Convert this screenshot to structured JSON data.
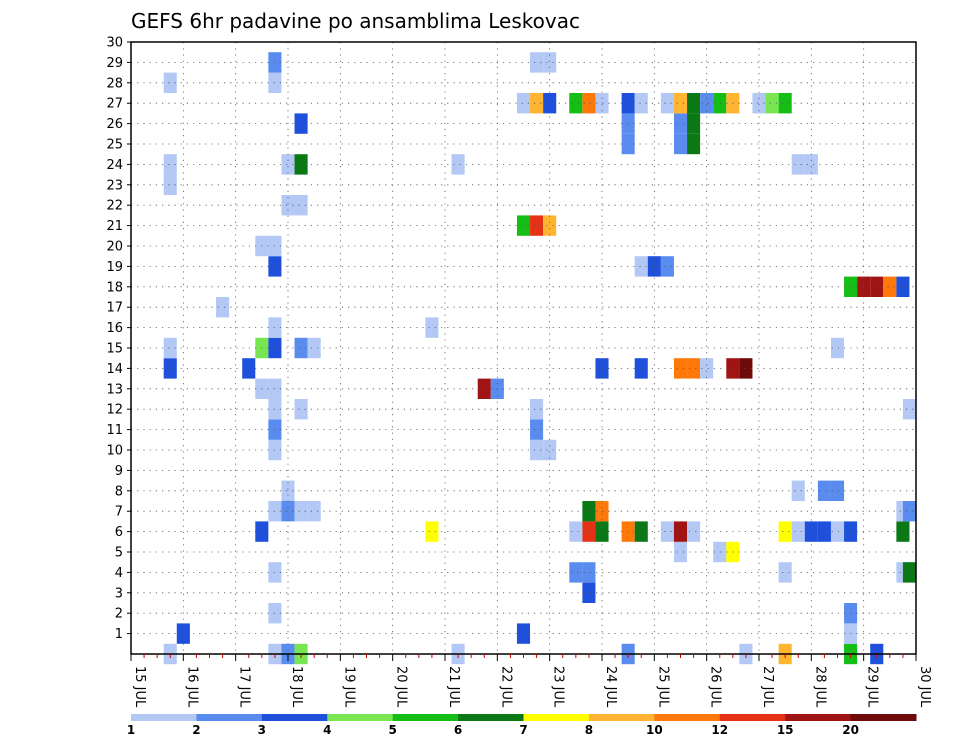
{
  "chart_data": {
    "type": "heatmap",
    "title": "GEFS 6hr padavine po ansamblima Leskovac",
    "x_ticks": [
      "15 JUL",
      "16 JUL",
      "17 JUL",
      "18 JUL",
      "19 JUL",
      "20 JUL",
      "21 JUL",
      "22 JUL",
      "23 JUL",
      "24 JUL",
      "25 JUL",
      "26 JUL",
      "27 JUL",
      "28 JUL",
      "29 JUL",
      "30 JUL"
    ],
    "y_ticks": [
      "1",
      "2",
      "3",
      "4",
      "5",
      "6",
      "7",
      "8",
      "9",
      "10",
      "11",
      "12",
      "13",
      "14",
      "15",
      "16",
      "17",
      "18",
      "19",
      "20",
      "21",
      "22",
      "23",
      "24",
      "25",
      "26",
      "27",
      "28",
      "29",
      "30"
    ],
    "xlim_days": [
      15,
      30
    ],
    "ylim_members": [
      0,
      30
    ],
    "time_step_hours": 6,
    "grid": "dotted",
    "colorbar": {
      "labels": [
        "1",
        "2",
        "3",
        "4",
        "5",
        "6",
        "7",
        "8",
        "10",
        "12",
        "15",
        "20"
      ],
      "colors": [
        "#b4c8f5",
        "#5a8cf0",
        "#1e50dc",
        "#78e650",
        "#14be14",
        "#0a7814",
        "#ffff00",
        "#ffb432",
        "#ff780a",
        "#e63214",
        "#a01414",
        "#6e0a0a"
      ]
    },
    "cells": [
      [
        15.75,
        0,
        1
      ],
      [
        16.0,
        1,
        3
      ],
      [
        17.25,
        14,
        3
      ],
      [
        15.75,
        14,
        3
      ],
      [
        15.75,
        15,
        1
      ],
      [
        15.75,
        23,
        1
      ],
      [
        15.75,
        24,
        1
      ],
      [
        15.75,
        28,
        1
      ],
      [
        16.75,
        17,
        1
      ],
      [
        17.5,
        6,
        3
      ],
      [
        17.5,
        15,
        4
      ],
      [
        17.5,
        20,
        1
      ],
      [
        17.5,
        13,
        1
      ],
      [
        17.75,
        0,
        1
      ],
      [
        17.75,
        2,
        1
      ],
      [
        17.75,
        4,
        1
      ],
      [
        17.75,
        7,
        1
      ],
      [
        17.75,
        10,
        1
      ],
      [
        17.75,
        11,
        2
      ],
      [
        17.75,
        12,
        1
      ],
      [
        17.75,
        13,
        1
      ],
      [
        17.75,
        15,
        3
      ],
      [
        17.75,
        16,
        1
      ],
      [
        17.75,
        19,
        3
      ],
      [
        17.75,
        20,
        1
      ],
      [
        17.75,
        28,
        1
      ],
      [
        17.75,
        29,
        2
      ],
      [
        18.0,
        0,
        2
      ],
      [
        18.0,
        7,
        2
      ],
      [
        18.0,
        8,
        1
      ],
      [
        18.0,
        24,
        1
      ],
      [
        18.0,
        22,
        1
      ],
      [
        18.25,
        0,
        4
      ],
      [
        18.25,
        7,
        1
      ],
      [
        18.25,
        12,
        1
      ],
      [
        18.25,
        15,
        2
      ],
      [
        18.25,
        22,
        1
      ],
      [
        18.25,
        24,
        6
      ],
      [
        18.25,
        26,
        3
      ],
      [
        18.5,
        7,
        1
      ],
      [
        18.5,
        15,
        1
      ],
      [
        20.75,
        6,
        7
      ],
      [
        20.75,
        16,
        1
      ],
      [
        21.25,
        24,
        1
      ],
      [
        21.25,
        0,
        1
      ],
      [
        21.75,
        13,
        11
      ],
      [
        22.0,
        13,
        2
      ],
      [
        22.5,
        1,
        3
      ],
      [
        22.5,
        21,
        5
      ],
      [
        22.5,
        27,
        1
      ],
      [
        22.75,
        10,
        1
      ],
      [
        22.75,
        11,
        2
      ],
      [
        22.75,
        12,
        1
      ],
      [
        22.75,
        21,
        10
      ],
      [
        22.75,
        27,
        8
      ],
      [
        22.75,
        29,
        1
      ],
      [
        23.0,
        10,
        1
      ],
      [
        23.0,
        21,
        8
      ],
      [
        23.0,
        27,
        3
      ],
      [
        23.0,
        29,
        1
      ],
      [
        23.5,
        4,
        2
      ],
      [
        23.5,
        6,
        1
      ],
      [
        23.5,
        27,
        5
      ],
      [
        23.75,
        3,
        3
      ],
      [
        23.75,
        4,
        2
      ],
      [
        23.75,
        6,
        10
      ],
      [
        23.75,
        7,
        6
      ],
      [
        23.75,
        27,
        9
      ],
      [
        24.0,
        6,
        6
      ],
      [
        24.0,
        7,
        9
      ],
      [
        24.0,
        14,
        3
      ],
      [
        24.0,
        27,
        1
      ],
      [
        24.5,
        0,
        2
      ],
      [
        24.5,
        6,
        9
      ],
      [
        24.5,
        25,
        2
      ],
      [
        24.5,
        26,
        2
      ],
      [
        24.5,
        27,
        3
      ],
      [
        24.75,
        6,
        6
      ],
      [
        24.75,
        14,
        3
      ],
      [
        24.75,
        19,
        1
      ],
      [
        24.75,
        27,
        1
      ],
      [
        25.0,
        19,
        3
      ],
      [
        25.25,
        19,
        2
      ],
      [
        25.25,
        6,
        1
      ],
      [
        25.25,
        27,
        1
      ],
      [
        25.5,
        5,
        1
      ],
      [
        25.5,
        6,
        11
      ],
      [
        25.5,
        14,
        9
      ],
      [
        25.5,
        25,
        2
      ],
      [
        25.5,
        26,
        2
      ],
      [
        25.5,
        27,
        8
      ],
      [
        25.75,
        6,
        1
      ],
      [
        25.75,
        14,
        9
      ],
      [
        25.75,
        25,
        6
      ],
      [
        25.75,
        26,
        6
      ],
      [
        25.75,
        27,
        6
      ],
      [
        26.0,
        14,
        1
      ],
      [
        26.0,
        27,
        2
      ],
      [
        26.25,
        5,
        1
      ],
      [
        26.25,
        27,
        5
      ],
      [
        26.5,
        5,
        7
      ],
      [
        26.5,
        14,
        11
      ],
      [
        26.5,
        27,
        8
      ],
      [
        26.75,
        14,
        12
      ],
      [
        26.75,
        0,
        1
      ],
      [
        27.0,
        27,
        1
      ],
      [
        27.25,
        27,
        4
      ],
      [
        27.5,
        0,
        8
      ],
      [
        27.5,
        4,
        1
      ],
      [
        27.5,
        6,
        7
      ],
      [
        27.5,
        27,
        5
      ],
      [
        27.75,
        6,
        1
      ],
      [
        27.75,
        8,
        1
      ],
      [
        27.75,
        24,
        1
      ],
      [
        28.0,
        6,
        3
      ],
      [
        28.0,
        24,
        1
      ],
      [
        28.25,
        6,
        3
      ],
      [
        28.25,
        8,
        2
      ],
      [
        28.5,
        6,
        1
      ],
      [
        28.5,
        8,
        2
      ],
      [
        28.5,
        15,
        1
      ],
      [
        28.75,
        0,
        5
      ],
      [
        28.75,
        1,
        1
      ],
      [
        28.75,
        2,
        2
      ],
      [
        28.75,
        6,
        3
      ],
      [
        28.75,
        18,
        5
      ],
      [
        29.0,
        18,
        11
      ],
      [
        29.25,
        18,
        11
      ],
      [
        29.25,
        0,
        3
      ],
      [
        29.5,
        18,
        9
      ],
      [
        29.75,
        4,
        1
      ],
      [
        29.75,
        6,
        6
      ],
      [
        29.75,
        7,
        1
      ],
      [
        29.75,
        18,
        3
      ],
      [
        29.875,
        4,
        6
      ],
      [
        29.875,
        7,
        2
      ],
      [
        29.875,
        12,
        1
      ]
    ]
  }
}
